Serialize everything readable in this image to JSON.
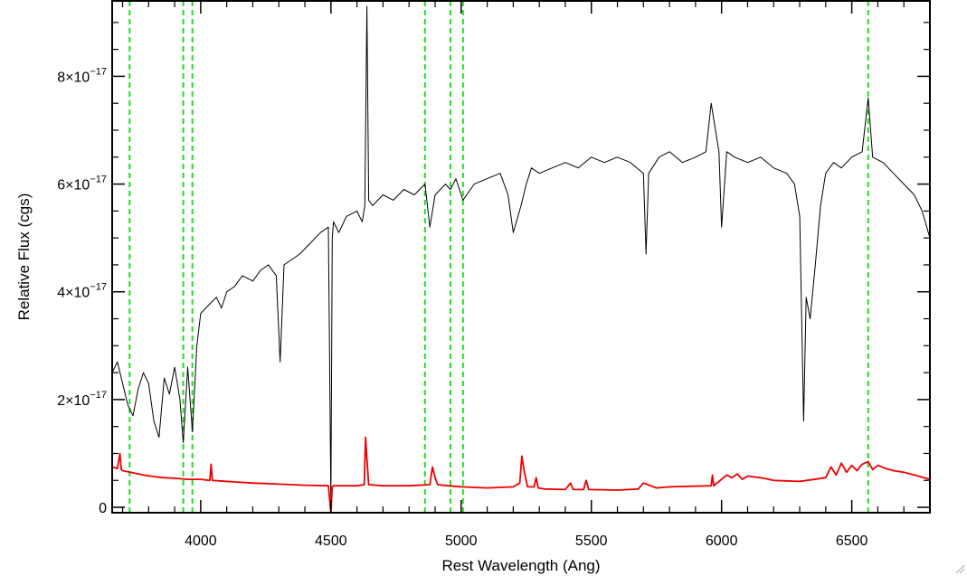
{
  "chart_data": {
    "type": "line",
    "xlabel": "Rest Wavelength (Ang)",
    "ylabel": "Relative Flux (cgs)",
    "xlim": [
      3660,
      6800
    ],
    "ylim": [
      -1e-18,
      9.4e-17
    ],
    "x_ticks": [
      4000,
      4500,
      5000,
      5500,
      6000,
      6500
    ],
    "x_tick_labels": [
      "4000",
      "4500",
      "5000",
      "5500",
      "6000",
      "6500"
    ],
    "y_ticks": [
      0,
      2e-17,
      4e-17,
      6e-17,
      8e-17
    ],
    "y_tick_labels": [
      {
        "mantissa": "0",
        "exponent": ""
      },
      {
        "mantissa": "2×10",
        "exponent": "−17"
      },
      {
        "mantissa": "4×10",
        "exponent": "−17"
      },
      {
        "mantissa": "6×10",
        "exponent": "−17"
      },
      {
        "mantissa": "8×10",
        "exponent": "−17"
      }
    ],
    "vertical_lines": [
      3727,
      3933,
      3968,
      4861,
      4959,
      5007,
      6563
    ],
    "vertical_line_color": "#22dd22",
    "series": [
      {
        "color": "#000000",
        "x": [
          3660,
          3680,
          3700,
          3720,
          3740,
          3760,
          3780,
          3800,
          3820,
          3840,
          3860,
          3880,
          3900,
          3920,
          3933,
          3950,
          3968,
          3985,
          4000,
          4020,
          4040,
          4060,
          4080,
          4100,
          4130,
          4160,
          4200,
          4230,
          4260,
          4290,
          4305,
          4320,
          4350,
          4380,
          4420,
          4460,
          4490,
          4500,
          4505,
          4510,
          4530,
          4560,
          4600,
          4620,
          4630,
          4638,
          4645,
          4660,
          4700,
          4740,
          4780,
          4820,
          4861,
          4880,
          4900,
          4940,
          4959,
          4980,
          5007,
          5050,
          5100,
          5150,
          5180,
          5200,
          5230,
          5250,
          5270,
          5300,
          5350,
          5400,
          5450,
          5500,
          5550,
          5600,
          5650,
          5700,
          5710,
          5720,
          5760,
          5800,
          5850,
          5900,
          5940,
          5960,
          5990,
          6000,
          6020,
          6050,
          6100,
          6150,
          6200,
          6250,
          6280,
          6300,
          6315,
          6325,
          6340,
          6360,
          6380,
          6400,
          6430,
          6460,
          6500,
          6540,
          6563,
          6580,
          6620,
          6660,
          6700,
          6740,
          6770,
          6800
        ],
        "y": [
          2.5e-17,
          2.7e-17,
          2.3e-17,
          1.9e-17,
          1.7e-17,
          2.2e-17,
          2.5e-17,
          2.3e-17,
          1.6e-17,
          1.3e-17,
          2.4e-17,
          2.1e-17,
          2.6e-17,
          2e-17,
          1.2e-17,
          2.6e-17,
          1.4e-17,
          3e-17,
          3.6e-17,
          3.7e-17,
          3.8e-17,
          3.9e-17,
          3.7e-17,
          4e-17,
          4.1e-17,
          4.3e-17,
          4.2e-17,
          4.4e-17,
          4.5e-17,
          4.3e-17,
          2.7e-17,
          4.5e-17,
          4.6e-17,
          4.7e-17,
          4.9e-17,
          5.1e-17,
          5.2e-17,
          1e-18,
          5e-17,
          5.3e-17,
          5.1e-17,
          5.4e-17,
          5.5e-17,
          5.3e-17,
          5.6e-17,
          9.3e-17,
          5.7e-17,
          5.6e-17,
          5.8e-17,
          5.7e-17,
          5.9e-17,
          5.8e-17,
          6e-17,
          5.2e-17,
          5.8e-17,
          6e-17,
          5.9e-17,
          6.1e-17,
          5.7e-17,
          6e-17,
          6.1e-17,
          6.2e-17,
          5.8e-17,
          5.1e-17,
          5.6e-17,
          6e-17,
          6.3e-17,
          6.2e-17,
          6.3e-17,
          6.4e-17,
          6.3e-17,
          6.5e-17,
          6.4e-17,
          6.5e-17,
          6.4e-17,
          6.2e-17,
          4.7e-17,
          6.2e-17,
          6.5e-17,
          6.6e-17,
          6.4e-17,
          6.5e-17,
          6.6e-17,
          7.5e-17,
          6.6e-17,
          5.2e-17,
          6.6e-17,
          6.5e-17,
          6.4e-17,
          6.5e-17,
          6.3e-17,
          6.2e-17,
          6e-17,
          5.4e-17,
          1.6e-17,
          3.9e-17,
          3.5e-17,
          4.5e-17,
          5.6e-17,
          6.2e-17,
          6.4e-17,
          6.3e-17,
          6.5e-17,
          6.6e-17,
          7.6e-17,
          6.5e-17,
          6.4e-17,
          6.2e-17,
          6e-17,
          5.8e-17,
          5.5e-17,
          5e-17
        ]
      },
      {
        "color": "#ee0000",
        "x": [
          3660,
          3680,
          3690,
          3695,
          3700,
          3740,
          3780,
          3820,
          3860,
          3900,
          3950,
          4000,
          4035,
          4040,
          4045,
          4100,
          4200,
          4300,
          4400,
          4490,
          4500,
          4505,
          4510,
          4550,
          4600,
          4628,
          4633,
          4638,
          4645,
          4700,
          4800,
          4880,
          4890,
          4900,
          4910,
          4950,
          5000,
          5100,
          5200,
          5225,
          5233,
          5241,
          5255,
          5280,
          5288,
          5296,
          5320,
          5400,
          5420,
          5430,
          5470,
          5480,
          5490,
          5600,
          5680,
          5700,
          5750,
          5800,
          5960,
          5965,
          5970,
          6020,
          6040,
          6060,
          6080,
          6100,
          6150,
          6200,
          6300,
          6400,
          6420,
          6440,
          6460,
          6480,
          6500,
          6520,
          6540,
          6563,
          6580,
          6600,
          6630,
          6660,
          6700,
          6740,
          6770,
          6800
        ],
        "y": [
          7.5e-18,
          7.2e-18,
          1e-17,
          7e-18,
          6.8e-18,
          6.4e-18,
          6e-18,
          5.7e-18,
          5.5e-18,
          5.4e-18,
          5.2e-18,
          5.2e-18,
          5e-18,
          8e-18,
          5e-18,
          4.8e-18,
          4.5e-18,
          4.3e-18,
          4.1e-18,
          4e-18,
          -1e-18,
          3.8e-18,
          4e-18,
          4e-18,
          4e-18,
          4.2e-18,
          1.3e-17,
          9e-18,
          4.2e-18,
          4e-18,
          4e-18,
          4.2e-18,
          7.5e-18,
          5.5e-18,
          4.2e-18,
          4e-18,
          3.8e-18,
          3.6e-18,
          3.8e-18,
          4.5e-18,
          9.5e-18,
          7e-18,
          3.8e-18,
          3.8e-18,
          5.5e-18,
          3.6e-18,
          3.4e-18,
          3.3e-18,
          4.5e-18,
          3.3e-18,
          3.3e-18,
          5e-18,
          3.3e-18,
          3.2e-18,
          3.4e-18,
          4.5e-18,
          3.6e-18,
          3.8e-18,
          4e-18,
          6e-18,
          4e-18,
          6e-18,
          5.5e-18,
          6.2e-18,
          5.2e-18,
          5.8e-18,
          5.5e-18,
          5e-18,
          4.8e-18,
          5.5e-18,
          7.5e-18,
          6e-18,
          8.2e-18,
          6.5e-18,
          7.8e-18,
          6.8e-18,
          8e-18,
          8.5e-18,
          7e-18,
          7.8e-18,
          7.2e-18,
          6.8e-18,
          6.5e-18,
          6e-18,
          5.6e-18,
          5.2e-18
        ]
      }
    ]
  }
}
